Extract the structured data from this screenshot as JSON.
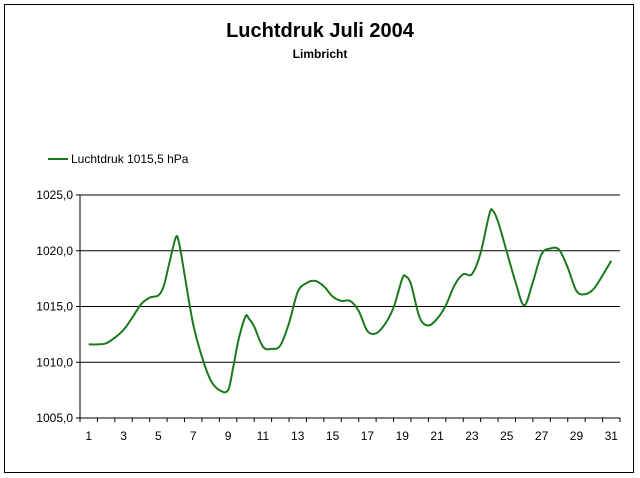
{
  "chart_data": {
    "type": "line",
    "title": "Luchtdruk Juli 2004",
    "subtitle": "Limbricht",
    "xlabel": "",
    "ylabel": "",
    "ylim": [
      1005,
      1025
    ],
    "xlim": [
      1,
      31
    ],
    "yticks": [
      "1005,0",
      "1010,0",
      "1015,0",
      "1020,0",
      "1025,0"
    ],
    "xticks": [
      "1",
      "3",
      "5",
      "7",
      "9",
      "11",
      "13",
      "15",
      "17",
      "19",
      "21",
      "23",
      "25",
      "27",
      "29",
      "31"
    ],
    "grid": true,
    "legend_position": "top-left",
    "series": [
      {
        "name": "Luchtdruk 1015,5 hPa",
        "color": "#1a7a1a",
        "x": [
          1,
          1.5,
          2,
          2.5,
          3,
          3.5,
          4,
          4.5,
          5,
          5.3,
          5.6,
          6,
          6.2,
          6.5,
          7,
          7.5,
          8,
          8.5,
          9,
          9.3,
          9.6,
          10,
          10.2,
          10.5,
          11,
          11.5,
          12,
          12.5,
          13,
          13.5,
          14,
          14.5,
          15,
          15.5,
          16,
          16.5,
          17,
          17.5,
          18,
          18.5,
          19,
          19.2,
          19.5,
          20,
          20.5,
          21,
          21.5,
          22,
          22.5,
          23,
          23.5,
          24,
          24.2,
          24.5,
          25,
          25.5,
          26,
          26.5,
          27,
          27.5,
          28,
          28.5,
          29,
          29.5,
          30,
          30.5,
          31
        ],
        "y": [
          1011.6,
          1011.6,
          1011.7,
          1012.2,
          1012.9,
          1014.0,
          1015.2,
          1015.8,
          1016.0,
          1016.8,
          1018.7,
          1021.2,
          1020.6,
          1017.9,
          1013.4,
          1010.5,
          1008.4,
          1007.5,
          1007.5,
          1009.6,
          1012.0,
          1014.1,
          1013.9,
          1013.2,
          1011.4,
          1011.2,
          1011.5,
          1013.5,
          1016.3,
          1017.1,
          1017.3,
          1016.8,
          1015.9,
          1015.5,
          1015.5,
          1014.6,
          1012.8,
          1012.6,
          1013.4,
          1014.9,
          1017.5,
          1017.7,
          1017.0,
          1014.0,
          1013.3,
          1013.9,
          1015.1,
          1016.9,
          1017.9,
          1017.9,
          1019.8,
          1023.3,
          1023.6,
          1022.6,
          1019.9,
          1017.2,
          1015.1,
          1017.2,
          1019.7,
          1020.2,
          1020.1,
          1018.5,
          1016.4,
          1016.1,
          1016.6,
          1017.8,
          1019.1
        ]
      }
    ]
  }
}
